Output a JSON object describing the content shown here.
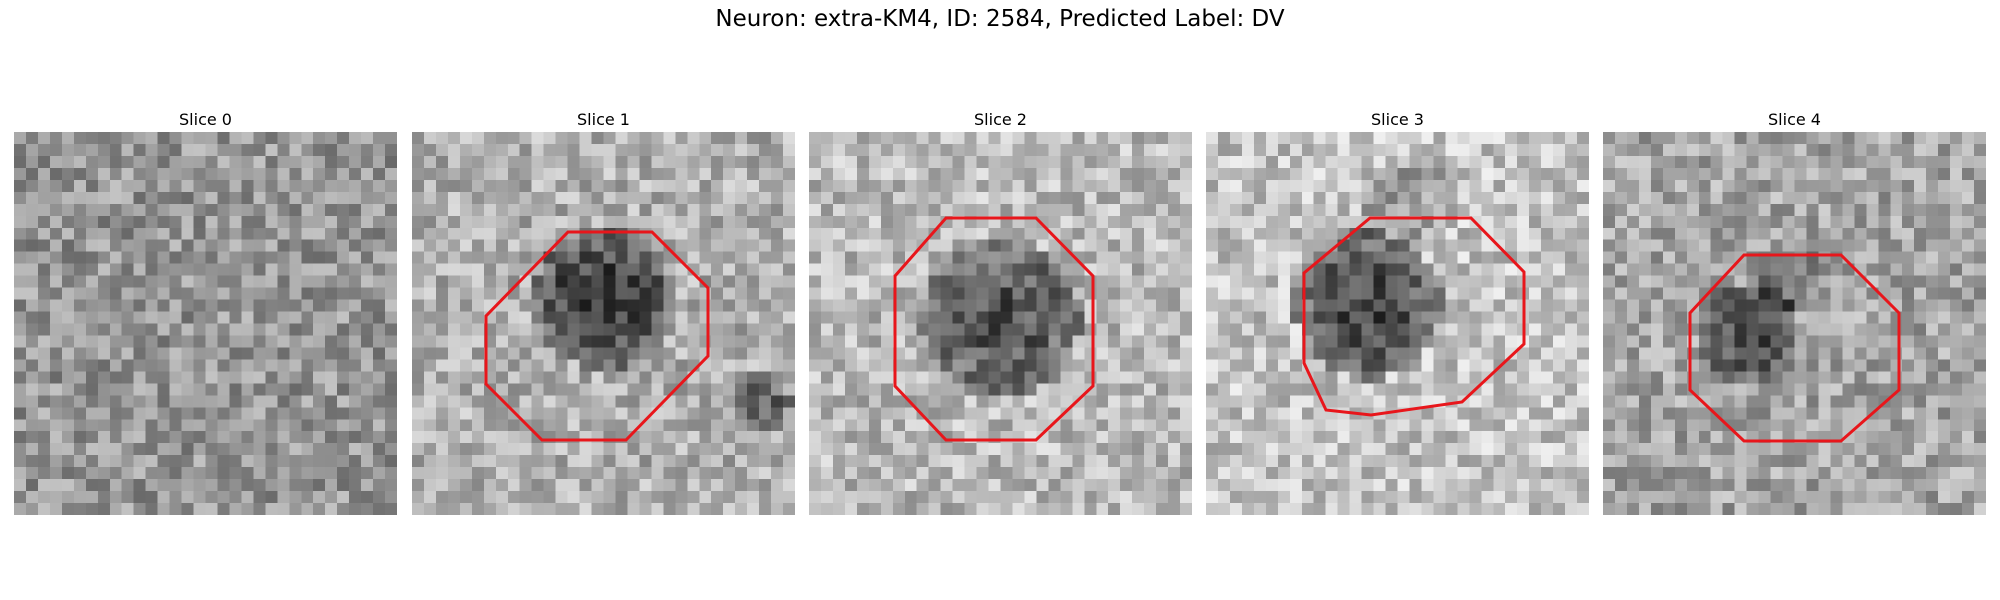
{
  "figure": {
    "title": "Neuron: extra-KM4, ID: 2584, Predicted Label: DV"
  },
  "roi_color": "#e8161b",
  "slices": [
    {
      "label": "Slice 0",
      "has_roi": false
    },
    {
      "label": "Slice 1",
      "has_roi": true
    },
    {
      "label": "Slice 2",
      "has_roi": true
    },
    {
      "label": "Slice 3",
      "has_roi": true
    },
    {
      "label": "Slice 4",
      "has_roi": true
    }
  ]
}
